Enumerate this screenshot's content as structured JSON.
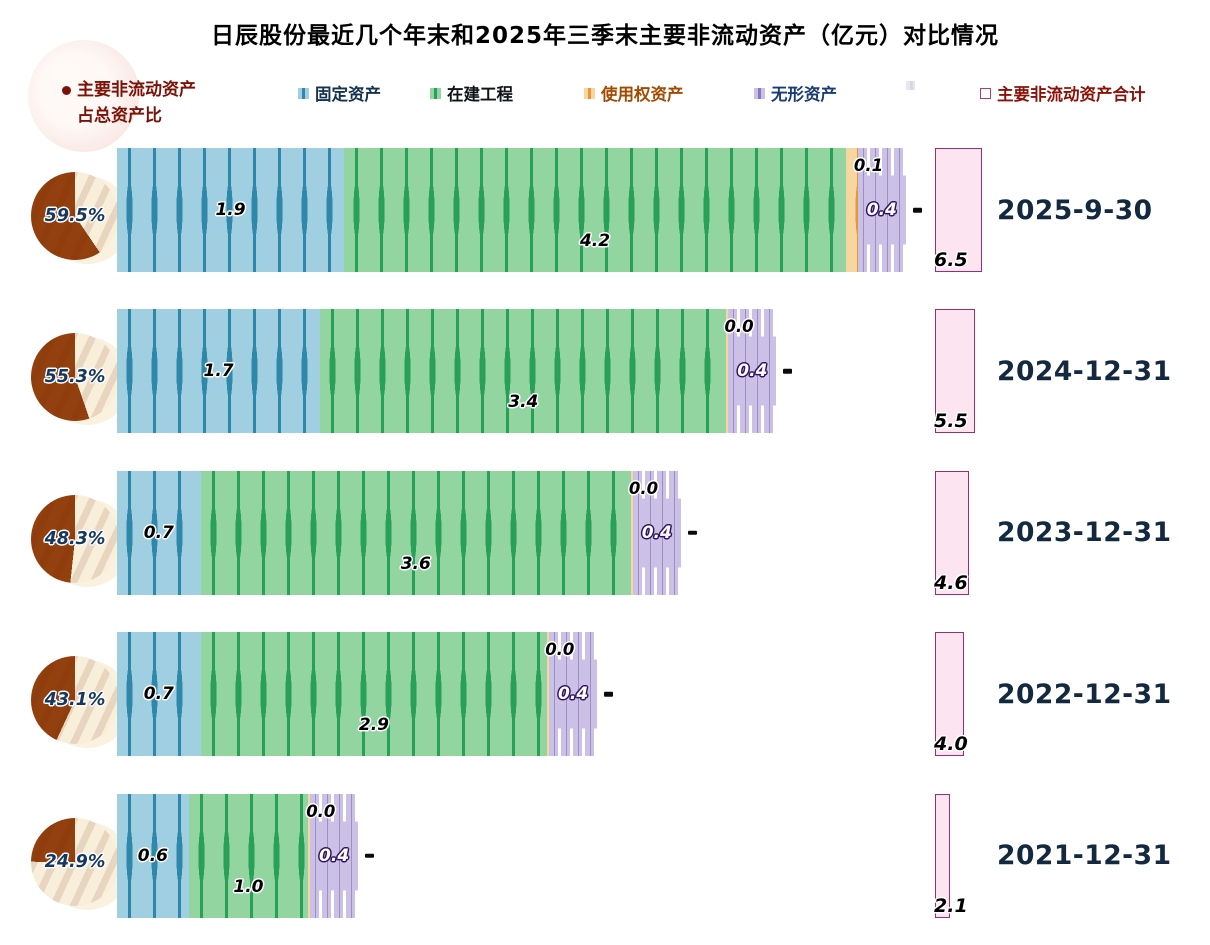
{
  "title": "日辰股份最近几个年末和2025年三季末主要非流动资产（亿元）对比情况",
  "unit": "亿元",
  "legend": {
    "ratio_series": {
      "label_line1": "主要非流动资产",
      "label_line2": "占总资产比"
    },
    "items": [
      {
        "id": "fixed",
        "label": "固定资产"
      },
      {
        "id": "construction",
        "label": "在建工程"
      },
      {
        "id": "right-of-use",
        "label": "使用权资产"
      },
      {
        "id": "intangible",
        "label": "无形资产"
      },
      {
        "id": "empty",
        "label": ""
      },
      {
        "id": "total",
        "label": "主要非流动资产合计"
      }
    ]
  },
  "colors": {
    "fixed_light": "#9FCFE1",
    "fixed_dark": "#2F87A9",
    "construction_light": "#92D5A1",
    "construction_dark": "#28A057",
    "right_of_use_light": "#F7D69F",
    "right_of_use_dark": "#E6953C",
    "intangible_light": "#CBC0E5",
    "intangible_dark": "#68529E",
    "total_fill": "#FCE4F0",
    "total_border": "#97306E",
    "pie_brown": "#93400F",
    "pie_cream": "#F8EFDA",
    "accent_red": "#7B1208",
    "percent_text": "#16375F",
    "date_text": "#13293F"
  },
  "rows": [
    {
      "date": "2025-9-30",
      "ratio_pct": 59.5,
      "fixed": 1.9,
      "construction": 4.2,
      "right_of_use": 0.1,
      "intangible": 0.4,
      "total": 6.5
    },
    {
      "date": "2024-12-31",
      "ratio_pct": 55.3,
      "fixed": 1.7,
      "construction": 3.4,
      "right_of_use": 0.0,
      "intangible": 0.4,
      "total": 5.5
    },
    {
      "date": "2023-12-31",
      "ratio_pct": 48.3,
      "fixed": 0.7,
      "construction": 3.6,
      "right_of_use": 0.0,
      "intangible": 0.4,
      "total": 4.6
    },
    {
      "date": "2022-12-31",
      "ratio_pct": 43.1,
      "fixed": 0.7,
      "construction": 2.9,
      "right_of_use": 0.0,
      "intangible": 0.4,
      "total": 4.0
    },
    {
      "date": "2021-12-31",
      "ratio_pct": 24.9,
      "fixed": 0.6,
      "construction": 1.0,
      "right_of_use": 0.0,
      "intangible": 0.4,
      "total": 2.1
    }
  ],
  "chart_data": {
    "type": "bar",
    "orientation": "horizontal-stacked",
    "title": "日辰股份最近几个年末和2025年三季末主要非流动资产（亿元）对比情况",
    "unit": "亿元",
    "categories": [
      "2025-9-30",
      "2024-12-31",
      "2023-12-31",
      "2022-12-31",
      "2021-12-31"
    ],
    "series": [
      {
        "name": "固定资产",
        "values": [
          1.9,
          1.7,
          0.7,
          0.7,
          0.6
        ]
      },
      {
        "name": "在建工程",
        "values": [
          4.2,
          3.4,
          3.6,
          2.9,
          1.0
        ]
      },
      {
        "name": "使用权资产",
        "values": [
          0.1,
          0.0,
          0.0,
          0.0,
          0.0
        ]
      },
      {
        "name": "无形资产",
        "values": [
          0.4,
          0.4,
          0.4,
          0.4,
          0.4
        ]
      }
    ],
    "totals": {
      "name": "主要非流动资产合计",
      "values": [
        6.5,
        5.5,
        4.6,
        4.0,
        2.1
      ]
    },
    "ratio": {
      "name": "主要非流动资产占总资产比",
      "values_pct": [
        59.5,
        55.3,
        48.3,
        43.1,
        24.9
      ]
    },
    "legend_position": "top",
    "grid": false
  }
}
